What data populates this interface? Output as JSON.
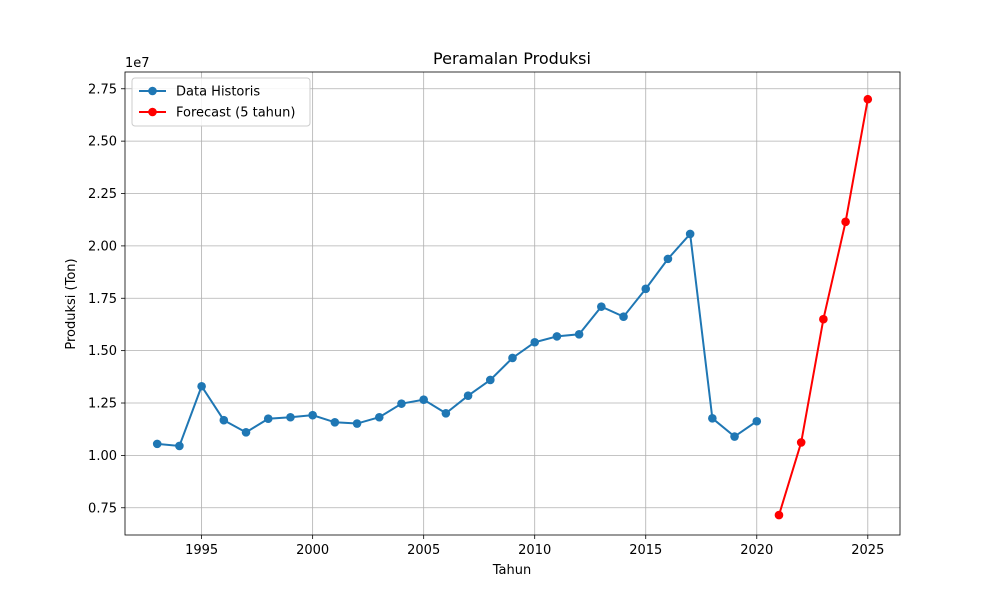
{
  "chart_data": {
    "type": "line",
    "title": "Peramalan Produksi",
    "xlabel": "Tahun",
    "ylabel": "Produksi (Ton)",
    "y_exponent_label": "1e7",
    "y_scale": 10000000,
    "xlim": [
      1991.55,
      2026.45
    ],
    "ylim": [
      6200000,
      28300000
    ],
    "x_ticks": [
      1995,
      2000,
      2005,
      2010,
      2015,
      2020,
      2025
    ],
    "x_tick_labels": [
      "1995",
      "2000",
      "2005",
      "2010",
      "2015",
      "2020",
      "2025"
    ],
    "y_ticks": [
      7500000,
      10000000,
      12500000,
      15000000,
      17500000,
      20000000,
      22500000,
      25000000,
      27500000
    ],
    "y_tick_labels": [
      "0.75",
      "1.00",
      "1.25",
      "1.50",
      "1.75",
      "2.00",
      "2.25",
      "2.50",
      "2.75"
    ],
    "grid": true,
    "legend_position": "upper-left",
    "series": [
      {
        "name": "Data Historis",
        "color": "#1f77b4",
        "x": [
          1993,
          1994,
          1995,
          1996,
          1997,
          1998,
          1999,
          2000,
          2001,
          2002,
          2003,
          2004,
          2005,
          2006,
          2007,
          2008,
          2009,
          2010,
          2011,
          2012,
          2013,
          2014,
          2015,
          2016,
          2017,
          2018,
          2019,
          2020
        ],
        "y": [
          10550000,
          10450000,
          13300000,
          11680000,
          11100000,
          11750000,
          11820000,
          11920000,
          11580000,
          11520000,
          11820000,
          12470000,
          12660000,
          12010000,
          12850000,
          13600000,
          14650000,
          15400000,
          15680000,
          15780000,
          17100000,
          16620000,
          17950000,
          19380000,
          20570000,
          11770000,
          10900000,
          11630000
        ]
      },
      {
        "name": "Forecast (5 tahun)",
        "color": "#ff0000",
        "x": [
          2021,
          2022,
          2023,
          2024,
          2025
        ],
        "y": [
          7150000,
          10620000,
          16500000,
          21150000,
          27000000
        ]
      }
    ]
  }
}
